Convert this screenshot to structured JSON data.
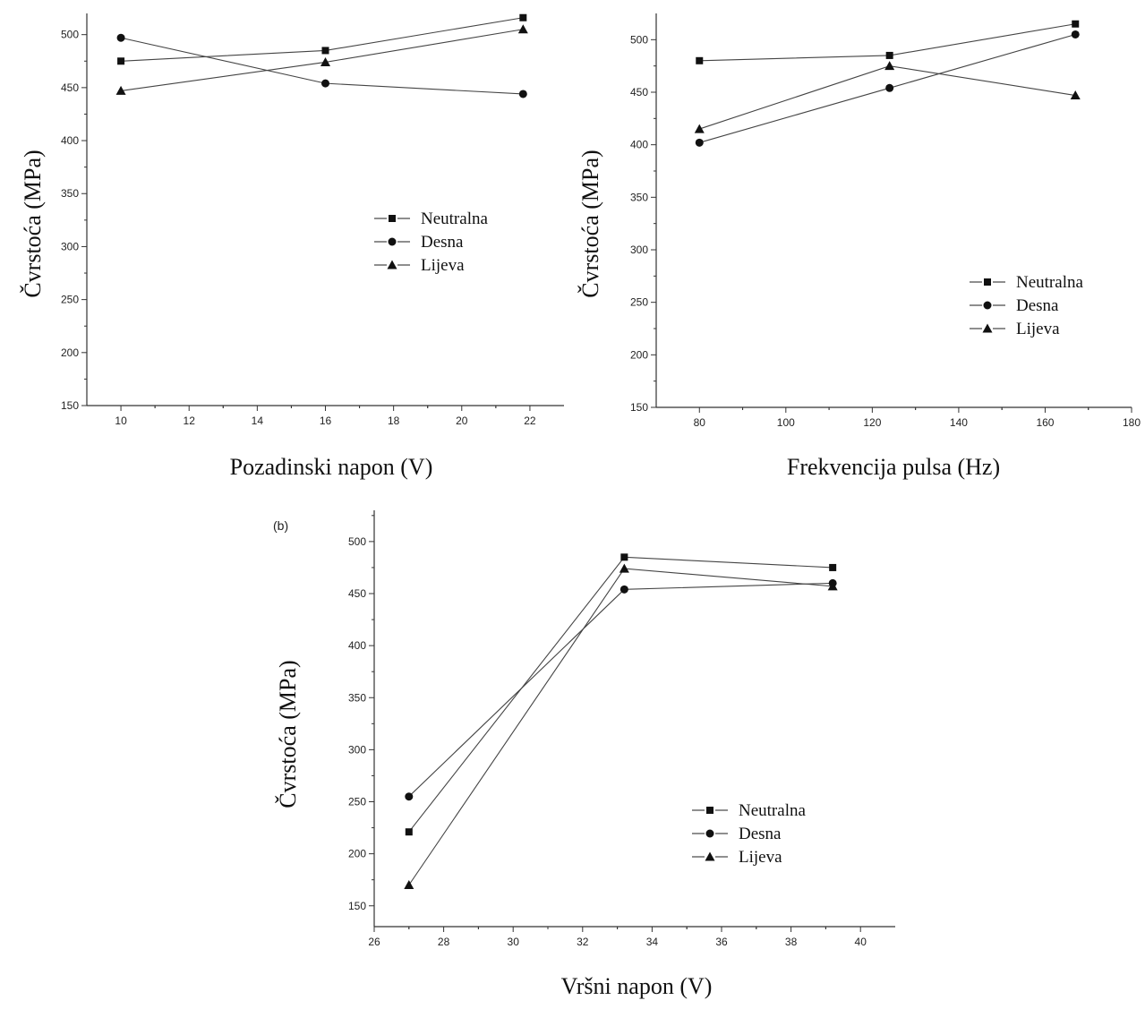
{
  "chart_data": [
    {
      "type": "line",
      "panel_label": "",
      "xlabel": "Pozadinski napon (V)",
      "ylabel": "Čvrstoća (MPa)",
      "xlim": [
        9,
        23
      ],
      "ylim": [
        150,
        520
      ],
      "xticks": [
        10,
        12,
        14,
        16,
        18,
        20,
        22
      ],
      "yticks": [
        150,
        200,
        250,
        300,
        350,
        400,
        450,
        500
      ],
      "x": [
        10,
        16,
        21.8
      ],
      "legend_position": "center-right",
      "series": [
        {
          "name": "Neutralna",
          "marker": "square",
          "values": [
            475,
            485,
            516
          ]
        },
        {
          "name": "Desna",
          "marker": "circle",
          "values": [
            497,
            454,
            444
          ]
        },
        {
          "name": "Lijeva",
          "marker": "triangle",
          "values": [
            447,
            474,
            505
          ]
        }
      ]
    },
    {
      "type": "line",
      "panel_label": "",
      "xlabel": "Frekvencija pulsa (Hz)",
      "ylabel": "Čvrstoća (MPa)",
      "xlim": [
        70,
        180
      ],
      "ylim": [
        150,
        525
      ],
      "xticks": [
        80,
        100,
        120,
        140,
        160,
        180
      ],
      "yticks": [
        150,
        200,
        250,
        300,
        350,
        400,
        450,
        500
      ],
      "x": [
        80,
        124,
        167
      ],
      "legend_position": "bottom-right",
      "series": [
        {
          "name": "Neutralna",
          "marker": "square",
          "values": [
            480,
            485,
            515
          ]
        },
        {
          "name": "Desna",
          "marker": "circle",
          "values": [
            402,
            454,
            505
          ]
        },
        {
          "name": "Lijeva",
          "marker": "triangle",
          "values": [
            415,
            475,
            447
          ]
        }
      ]
    },
    {
      "type": "line",
      "panel_label": "(b)",
      "xlabel": "Vršni napon (V)",
      "ylabel": "Čvrstoća (MPa)",
      "xlim": [
        26,
        41
      ],
      "ylim": [
        130,
        530
      ],
      "xticks": [
        26,
        28,
        30,
        32,
        34,
        36,
        38,
        40
      ],
      "yticks": [
        150,
        200,
        250,
        300,
        350,
        400,
        450,
        500
      ],
      "x": [
        27,
        33.2,
        39.2
      ],
      "legend_position": "bottom-right",
      "series": [
        {
          "name": "Neutralna",
          "marker": "square",
          "values": [
            221,
            485,
            475
          ]
        },
        {
          "name": "Desna",
          "marker": "circle",
          "values": [
            255,
            454,
            460
          ]
        },
        {
          "name": "Lijeva",
          "marker": "triangle",
          "values": [
            170,
            474,
            457
          ]
        }
      ]
    }
  ]
}
